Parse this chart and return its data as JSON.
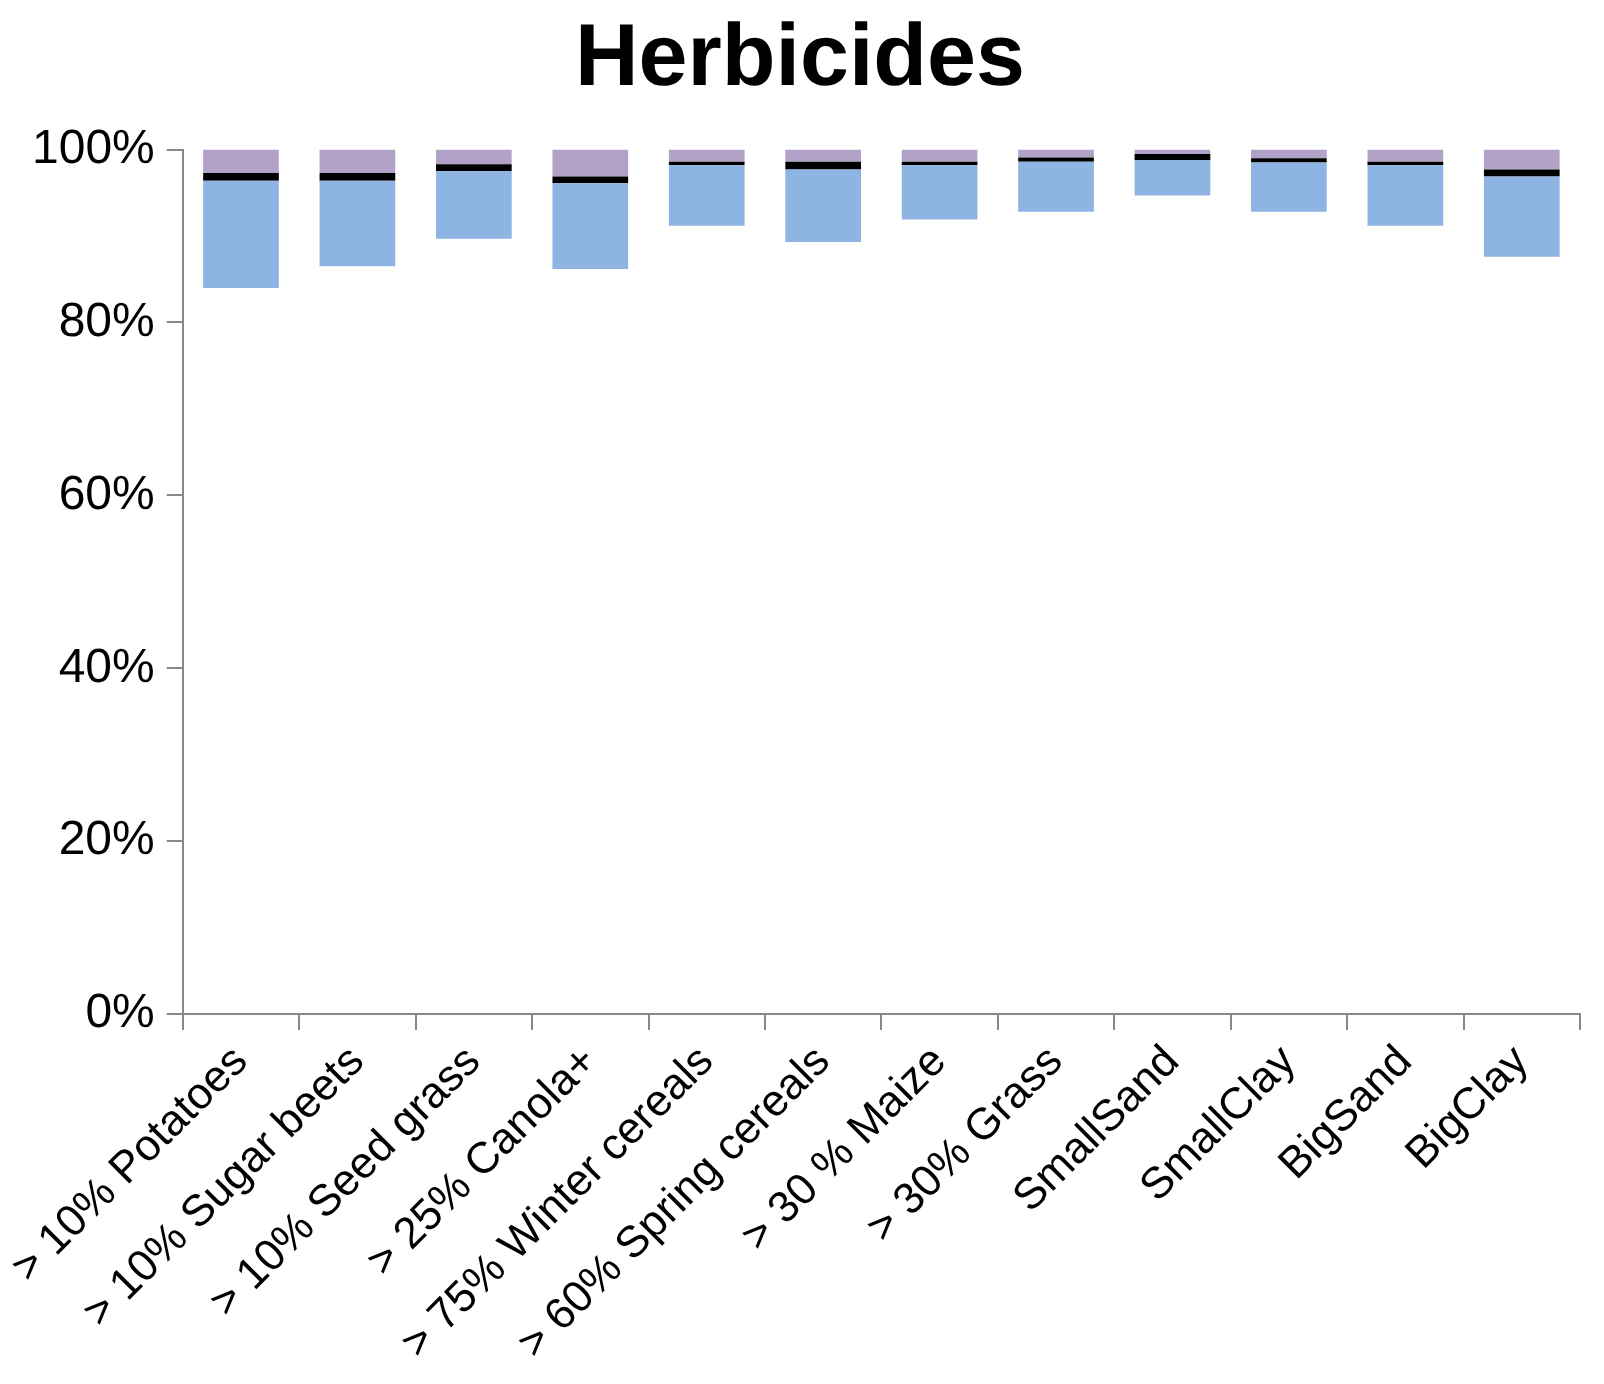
{
  "chart_data": {
    "type": "bar",
    "title": "Herbicides",
    "grid": false,
    "legend": false,
    "categories": [
      "> 10% Potatoes",
      "> 10% Sugar beets",
      "> 10% Seed grass",
      "> 25% Canola+",
      "> 75% Winter cereals",
      "> 60% Spring cereals",
      "> 30 % Maize",
      "> 30% Grass",
      "SmallSand",
      "SmallClay",
      "BigSand",
      "BigClay"
    ],
    "series": [
      {
        "color": "#8eb4e3",
        "base": [
          84.0,
          86.5,
          89.7,
          86.2,
          91.2,
          89.3,
          91.9,
          92.8,
          94.7,
          92.8,
          91.2,
          87.6
        ],
        "values": [
          12.4,
          9.9,
          7.8,
          9.9,
          7.0,
          8.4,
          6.3,
          5.8,
          4.1,
          5.7,
          7.0,
          9.3
        ]
      },
      {
        "color": "#000000",
        "base": [
          96.4,
          96.4,
          97.5,
          96.1,
          98.2,
          97.7,
          98.2,
          98.6,
          98.8,
          98.5,
          98.2,
          96.9
        ],
        "values": [
          0.9,
          0.9,
          0.8,
          0.8,
          0.4,
          0.9,
          0.4,
          0.5,
          0.7,
          0.5,
          0.4,
          0.8
        ]
      },
      {
        "color": "#b3a2c7",
        "base": [
          97.3,
          97.3,
          98.3,
          96.9,
          98.6,
          98.6,
          98.6,
          99.1,
          99.5,
          99.0,
          98.6,
          97.7
        ],
        "values": [
          2.7,
          2.7,
          1.7,
          3.1,
          1.4,
          1.4,
          1.4,
          0.9,
          0.5,
          1.0,
          1.4,
          2.3
        ]
      }
    ],
    "ylim": [
      0,
      100
    ],
    "yticks": [
      {
        "value": 0,
        "label": "0%"
      },
      {
        "value": 20,
        "label": "20%"
      },
      {
        "value": 40,
        "label": "40%"
      },
      {
        "value": 60,
        "label": "60%"
      },
      {
        "value": 80,
        "label": "80%"
      },
      {
        "value": 100,
        "label": "100%"
      }
    ]
  }
}
